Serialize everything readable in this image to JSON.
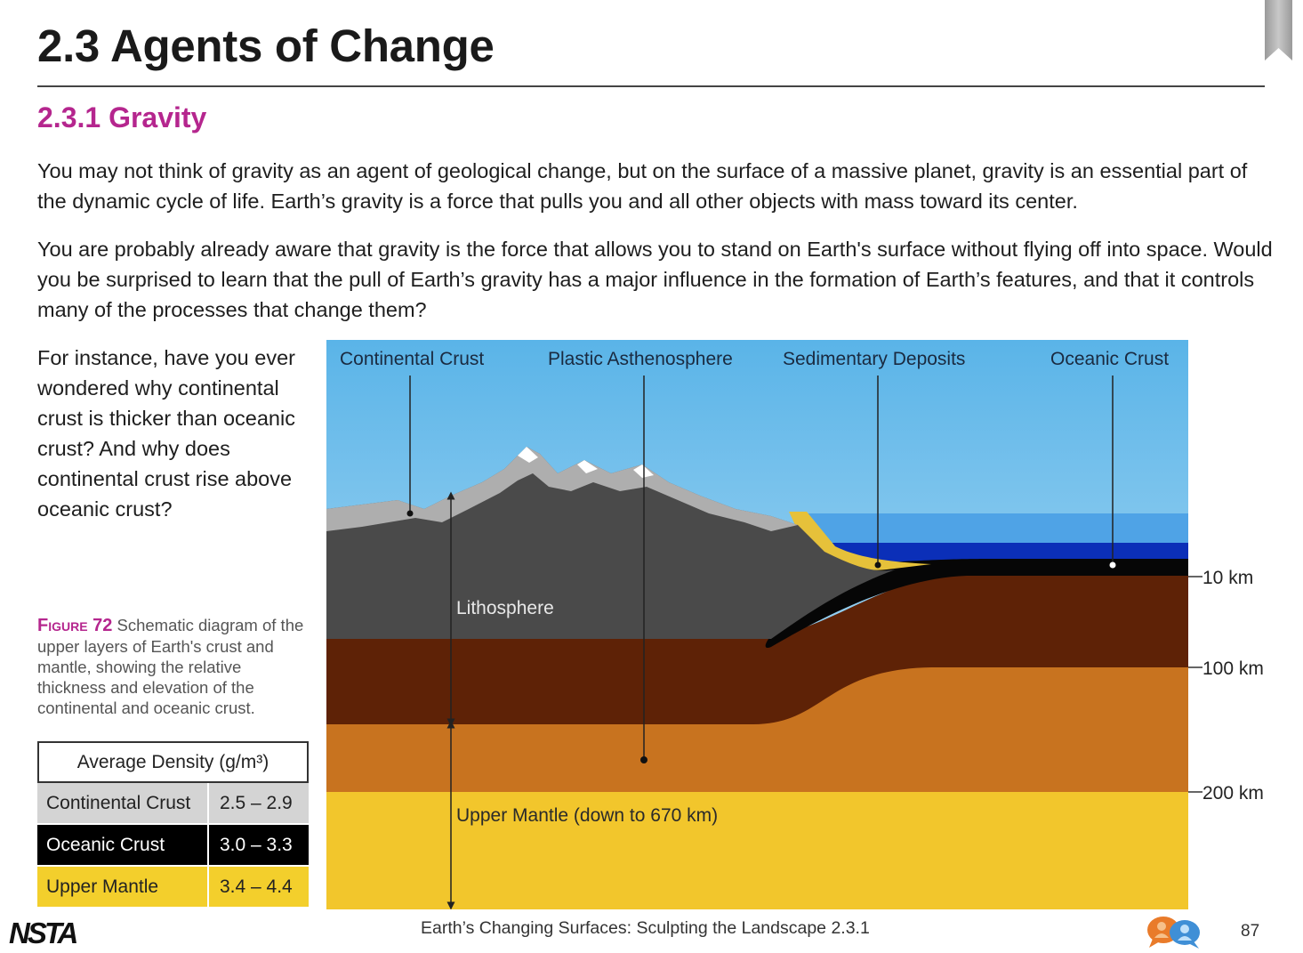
{
  "page": {
    "title": "2.3 Agents of Change",
    "section_title": "2.3.1 Gravity",
    "paragraphs": [
      "You may not think of gravity as an agent of geological change, but on the surface of a massive planet, gravity is an essential part of the dynamic cycle of life. Earth’s gravity is a force that pulls you and all other objects with mass toward its center.",
      "You are probably already aware that gravity is the force that allows you to stand on Earth's surface without flying off into space. Would you be surprised to learn that the pull of Earth’s gravity has a major influence in the formation of Earth’s features, and that it controls many of the processes that change them?",
      "For instance, have you ever wondered why continental crust is thicker than oceanic crust? And why does continental crust rise above oceanic crust?"
    ]
  },
  "figure": {
    "label": "Figure 72",
    "caption": "Schematic diagram of the upper layers of Earth's crust and mantle, showing the relative thickness and elevation of the continental and oceanic crust.",
    "labels": {
      "continental_crust": "Continental Crust",
      "plastic_asthenosphere": "Plastic Asthenosphere",
      "sedimentary_deposits": "Sedimentary Deposits",
      "oceanic_crust": "Oceanic Crust",
      "lithosphere": "Lithosphere",
      "upper_mantle": "Upper Mantle (down to 670 km)"
    },
    "depth_marks": [
      "10 km",
      "100 km",
      "200 km"
    ],
    "colors": {
      "sky_top": "#5ab4e8",
      "sky_bottom": "#cfeaf9",
      "continental_crust": "#4a4a4a",
      "oceanic_crust": "#060606",
      "ocean_shallow": "#4fa3e6",
      "ocean_deep": "#0b2fb8",
      "sediment": "#e6c13a",
      "lithospheric_mantle": "#5e2206",
      "asthenosphere": "#c8731f",
      "upper_mantle": "#f2c62c"
    }
  },
  "density_table": {
    "header": "Average Density (g/m³)",
    "rows": [
      {
        "name": "Continental Crust",
        "value": "2.5 – 2.9"
      },
      {
        "name": "Oceanic Crust",
        "value": "3.0 – 3.3"
      },
      {
        "name": "Upper Mantle",
        "value": "3.4 – 4.4"
      }
    ]
  },
  "footer": {
    "logo": "NSTA",
    "text": "Earth’s Changing Surfaces: Sculpting the Landscape 2.3.1",
    "page_number": "87",
    "icon": "discussion-icon"
  },
  "icons": {
    "bookmark": "bookmark-ribbon-icon"
  }
}
